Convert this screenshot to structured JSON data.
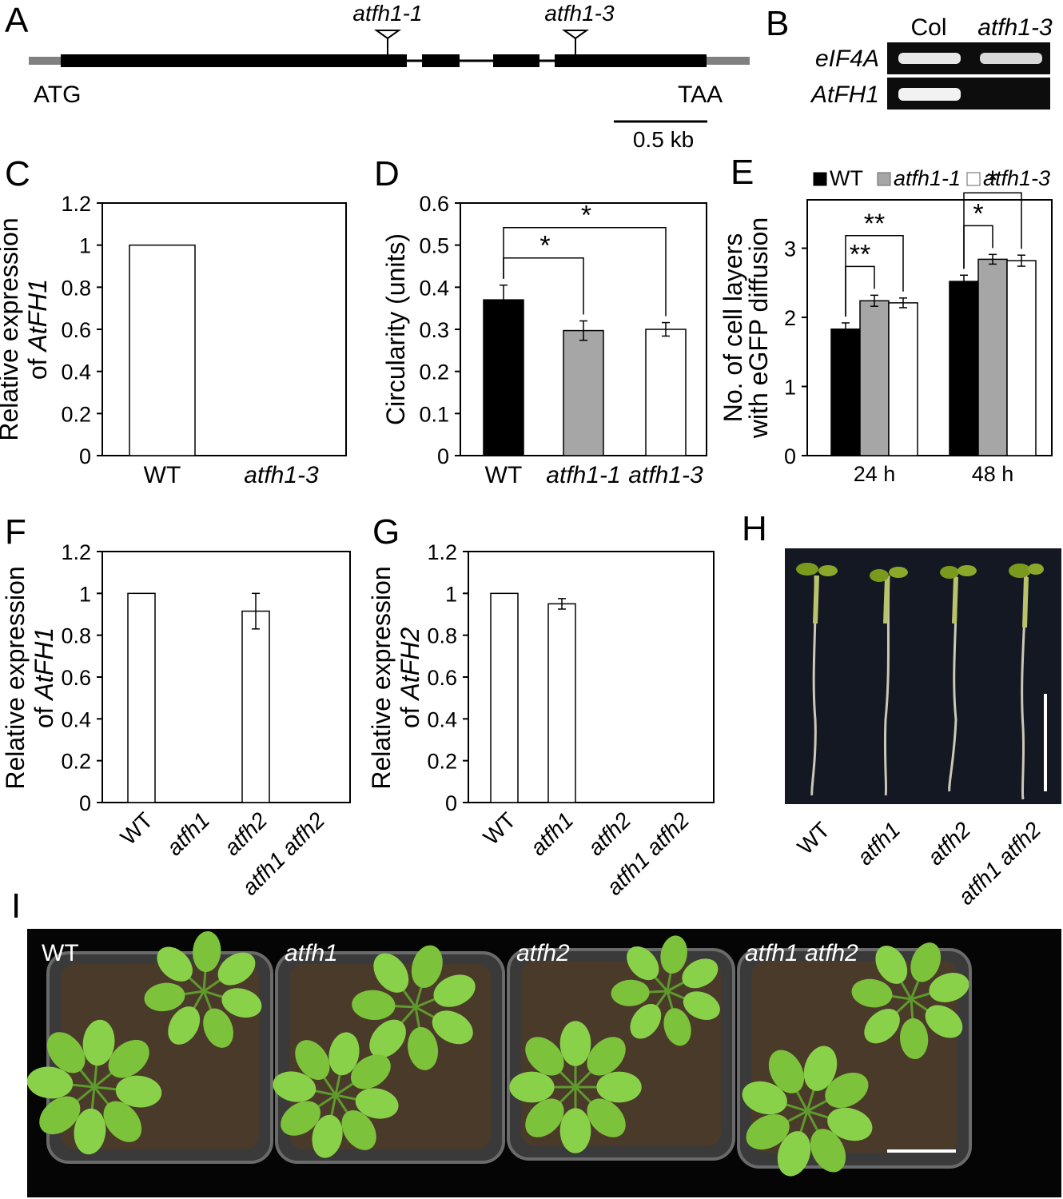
{
  "panels": {
    "A": "A",
    "B": "B",
    "C": "C",
    "D": "D",
    "E": "E",
    "F": "F",
    "G": "G",
    "H": "H",
    "I": "I"
  },
  "panelA": {
    "allele1": "atfh1-1",
    "allele3": "atfh1-3",
    "start_codon": "ATG",
    "stop_codon": "TAA",
    "scale_label": "0.5 kb"
  },
  "panelB": {
    "col_header": "Col",
    "mut_header": "atfh1-3",
    "row1": "eIF4A",
    "row2": "AtFH1"
  },
  "panelH": {
    "labels": [
      "WT",
      "atfh1",
      "atfh2",
      "atfh1 atfh2"
    ]
  },
  "panelI": {
    "labels": [
      "WT",
      "atfh1",
      "atfh2",
      "atfh1 atfh2"
    ]
  },
  "chart_data": [
    {
      "panel": "C",
      "type": "bar",
      "categories": [
        "WT",
        "atfh1-3"
      ],
      "values": [
        1.0,
        0.0
      ],
      "ylabel_line1": "Relative expression",
      "ylabel_line2": "of AtFH1",
      "ylim": [
        0,
        1.2
      ],
      "yticks": [
        "0",
        "0.2",
        "0.4",
        "0.6",
        "0.8",
        "1",
        "1.2"
      ],
      "colors": [
        "#ffffff",
        "#ffffff"
      ]
    },
    {
      "panel": "D",
      "type": "bar",
      "categories": [
        "WT",
        "atfh1-1",
        "atfh1-3"
      ],
      "values": [
        0.37,
        0.297,
        0.3
      ],
      "errors": [
        0.035,
        0.023,
        0.016
      ],
      "ylabel": "Circularity (units)",
      "ylim": [
        0,
        0.6
      ],
      "yticks": [
        "0",
        "0.1",
        "0.2",
        "0.3",
        "0.4",
        "0.5",
        "0.6"
      ],
      "colors": [
        "#000000",
        "#a6a6a6",
        "#ffffff"
      ],
      "significance": [
        {
          "from": 0,
          "to": 1,
          "label": "*"
        },
        {
          "from": 0,
          "to": 2,
          "label": "*"
        }
      ]
    },
    {
      "panel": "E",
      "type": "bar",
      "categories": [
        "24 h",
        "48 h"
      ],
      "series": [
        {
          "name": "WT",
          "values": [
            1.83,
            2.52
          ],
          "errors": [
            0.09,
            0.09
          ],
          "color": "#000000"
        },
        {
          "name": "atfh1-1",
          "values": [
            2.24,
            2.84
          ],
          "errors": [
            0.08,
            0.07
          ],
          "color": "#a6a6a6"
        },
        {
          "name": "atfh1-3",
          "values": [
            2.21,
            2.82
          ],
          "errors": [
            0.07,
            0.08
          ],
          "color": "#ffffff"
        }
      ],
      "ylabel_line1": "No. of cell layers",
      "ylabel_line2": "with eGFP diffusion",
      "ylim": [
        0,
        3.7
      ],
      "yticks": [
        "0",
        "1",
        "2",
        "3"
      ],
      "legend": "top",
      "significance": [
        {
          "group": 0,
          "from": 0,
          "to": 1,
          "label": "**"
        },
        {
          "group": 0,
          "from": 0,
          "to": 2,
          "label": "**"
        },
        {
          "group": 1,
          "from": 0,
          "to": 1,
          "label": "*"
        },
        {
          "group": 1,
          "from": 0,
          "to": 2,
          "label": "*"
        }
      ]
    },
    {
      "panel": "F",
      "type": "bar",
      "categories": [
        "WT",
        "atfh1",
        "atfh2",
        "atfh1 atfh2"
      ],
      "values": [
        1.0,
        0.0,
        0.915,
        0.0
      ],
      "errors": [
        0,
        0,
        0.085,
        0
      ],
      "ylabel_line1": "Relative expression",
      "ylabel_line2": "of AtFH1",
      "ylim": [
        0,
        1.2
      ],
      "yticks": [
        "0",
        "0.2",
        "0.4",
        "0.6",
        "0.8",
        "1",
        "1.2"
      ],
      "colors": [
        "#ffffff",
        "#ffffff",
        "#ffffff",
        "#ffffff"
      ]
    },
    {
      "panel": "G",
      "type": "bar",
      "categories": [
        "WT",
        "atfh1",
        "atfh2",
        "atfh1 atfh2"
      ],
      "values": [
        1.0,
        0.95,
        0.0,
        0.0
      ],
      "errors": [
        0,
        0.025,
        0,
        0
      ],
      "ylabel_line1": "Relative expression",
      "ylabel_line2": "of AtFH2",
      "ylim": [
        0,
        1.2
      ],
      "yticks": [
        "0",
        "0.2",
        "0.4",
        "0.6",
        "0.8",
        "1",
        "1.2"
      ],
      "colors": [
        "#ffffff",
        "#ffffff",
        "#ffffff",
        "#ffffff"
      ]
    }
  ]
}
